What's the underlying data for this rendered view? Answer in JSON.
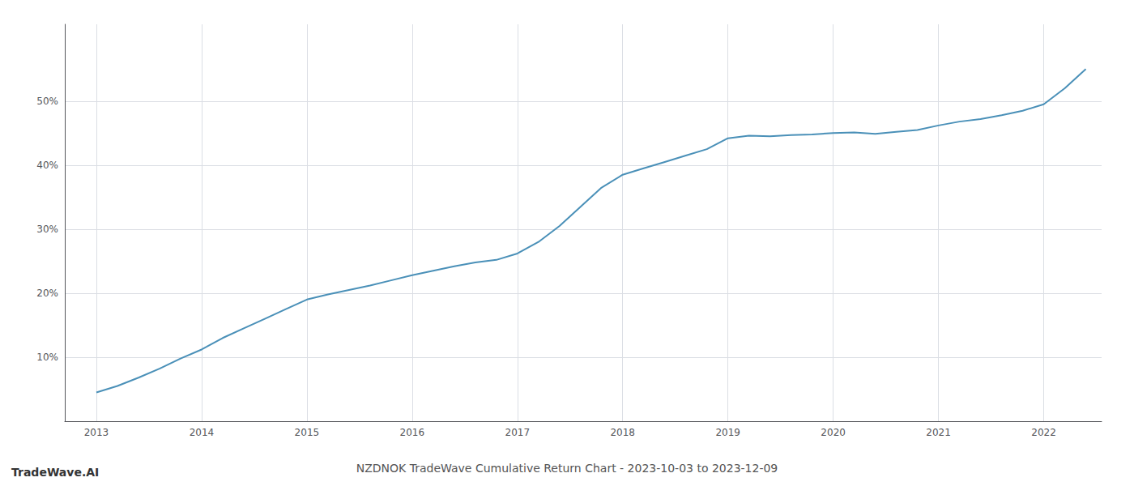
{
  "chart_data": {
    "type": "line",
    "title": "NZDNOK TradeWave Cumulative Return Chart - 2023-10-03 to 2023-12-09",
    "annotations": [
      "TradeWave.AI"
    ],
    "color": "#4a90b8",
    "x": [
      2013.0,
      2013.2,
      2013.4,
      2013.6,
      2013.8,
      2014.0,
      2014.2,
      2014.4,
      2014.6,
      2014.8,
      2015.0,
      2015.2,
      2015.4,
      2015.6,
      2015.8,
      2016.0,
      2016.2,
      2016.4,
      2016.6,
      2016.8,
      2017.0,
      2017.2,
      2017.4,
      2017.6,
      2017.8,
      2018.0,
      2018.2,
      2018.4,
      2018.6,
      2018.8,
      2019.0,
      2019.2,
      2019.4,
      2019.6,
      2019.8,
      2020.0,
      2020.2,
      2020.4,
      2020.6,
      2020.8,
      2021.0,
      2021.2,
      2021.4,
      2021.6,
      2021.8,
      2022.0,
      2022.2,
      2022.4
    ],
    "values": [
      4.5,
      5.5,
      6.8,
      8.2,
      9.8,
      11.2,
      13.0,
      14.5,
      16.0,
      17.5,
      19.0,
      19.8,
      20.5,
      21.2,
      22.0,
      22.8,
      23.5,
      24.2,
      24.8,
      25.2,
      26.2,
      28.0,
      30.5,
      33.5,
      36.5,
      38.5,
      39.5,
      40.5,
      41.5,
      42.5,
      44.2,
      44.6,
      44.5,
      44.7,
      44.8,
      45.0,
      45.1,
      44.9,
      45.2,
      45.5,
      46.2,
      46.8,
      47.2,
      47.8,
      48.5,
      49.5,
      52.0,
      55.0
    ],
    "xlim": [
      2012.7,
      2022.55
    ],
    "xticks": [
      2013,
      2014,
      2015,
      2016,
      2017,
      2018,
      2019,
      2020,
      2021,
      2022
    ],
    "ylim": [
      0,
      62
    ],
    "yticks": [
      {
        "value": 10,
        "label": "10%"
      },
      {
        "value": 20,
        "label": "20%"
      },
      {
        "value": 30,
        "label": "30%"
      },
      {
        "value": 40,
        "label": "40%"
      },
      {
        "value": 50,
        "label": "50%"
      }
    ],
    "grid": true
  }
}
